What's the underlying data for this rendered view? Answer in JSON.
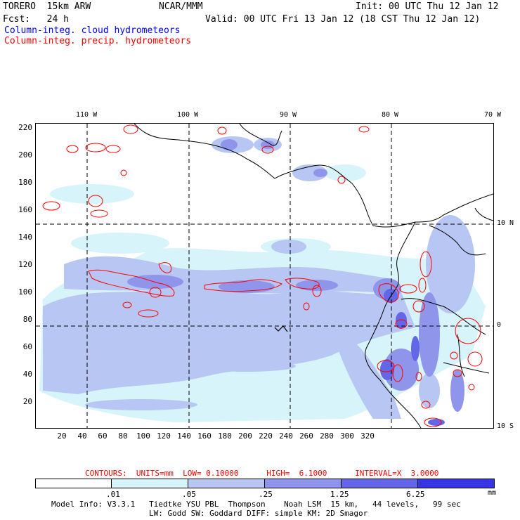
{
  "header": {
    "model": "TORERO  15km ARW",
    "center": "NCAR/MMM",
    "init": "Init: 00 UTC Thu 12 Jan 12",
    "fcst": "Fcst:   24 h",
    "valid": "Valid: 00 UTC Fri 13 Jan 12 (18 CST Thu 12 Jan 12)",
    "line_cloud": "Column-integ. cloud hydrometeors",
    "line_precip": "Column-integ. precip. hydrometeors"
  },
  "map": {
    "lon_labels": [
      "110 W",
      "100 W",
      "90 W",
      "80 W",
      "70 W"
    ],
    "lat_labels": [
      "10 N",
      "0",
      "10 S"
    ],
    "y_ticks": [
      "220",
      "200",
      "180",
      "160",
      "140",
      "120",
      "100",
      "80",
      "60",
      "40",
      "20"
    ],
    "x_ticks": [
      "20",
      "40",
      "60",
      "80",
      "100",
      "120",
      "140",
      "160",
      "180",
      "200",
      "220",
      "240",
      "260",
      "280",
      "300",
      "320"
    ]
  },
  "contour_info": {
    "label": "CONTOURS:  UNITS=mm  LOW= 0.10000      HIGH=  6.1000      INTERVAL=X  3.0000"
  },
  "colorbar": {
    "levels": [
      ".01",
      ".05",
      ".25",
      "1.25",
      "6.25"
    ],
    "unit": "mm",
    "colors": [
      "#ffffff",
      "#d8f4fb",
      "#b7c6f2",
      "#9095ec",
      "#6466e8",
      "#3535e6"
    ]
  },
  "footer": {
    "line1": "Model Info: V3.3.1   Tiedtke YSU PBL  Thompson    Noah LSM  15 km,   44 levels,   99 sec",
    "line2": "LW: Godd SW: Goddard DIFF: simple KM: 2D Smagor"
  }
}
